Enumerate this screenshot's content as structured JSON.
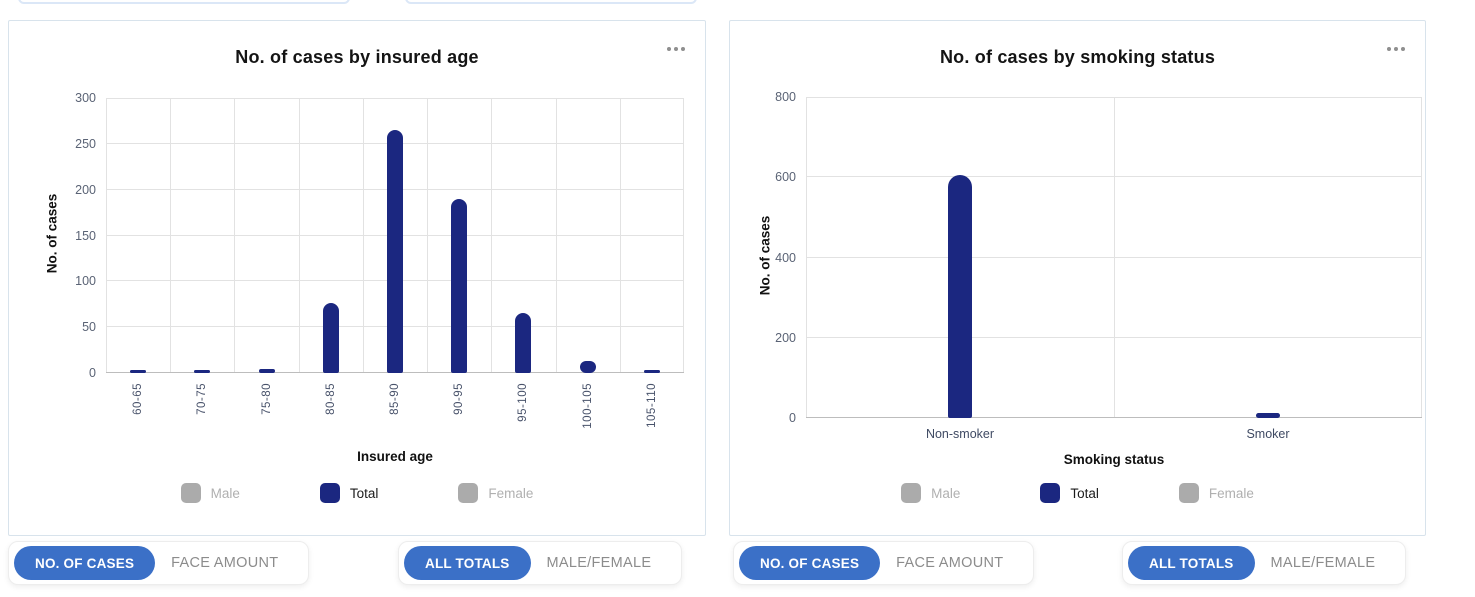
{
  "colors": {
    "bar_navy": "#1b2780",
    "legend_inactive_gray": "#ababab",
    "button_active_blue": "#3b70c7",
    "button_inactive_text": "#8c8c8c",
    "gridline": "#e2e2e2",
    "card_border": "#d8e3ec"
  },
  "cards": [
    {
      "title": "No. of cases by insured age",
      "y_axis_title": "No. of cases",
      "x_axis_title": "Insured age",
      "legend": [
        {
          "label": "Male",
          "active": false
        },
        {
          "label": "Total",
          "active": true
        },
        {
          "label": "Female",
          "active": false
        }
      ]
    },
    {
      "title": "No. of cases by smoking status",
      "y_axis_title": "No. of cases",
      "x_axis_title": "Smoking status",
      "legend": [
        {
          "label": "Male",
          "active": false
        },
        {
          "label": "Total",
          "active": true
        },
        {
          "label": "Female",
          "active": false
        }
      ]
    }
  ],
  "chart_data": [
    {
      "type": "bar",
      "title": "No. of cases by insured age",
      "xlabel": "Insured age",
      "ylabel": "No. of cases",
      "categories": [
        "60-65",
        "70-75",
        "75-80",
        "80-85",
        "85-90",
        "90-95",
        "95-100",
        "100-105",
        "105-110"
      ],
      "series": [
        {
          "name": "Total",
          "color": "#1b2780",
          "values": [
            2,
            2,
            4,
            76,
            265,
            190,
            65,
            13,
            2
          ]
        }
      ],
      "inactive_series": [
        "Male",
        "Female"
      ],
      "ylim": [
        0,
        300
      ],
      "ytick_step": 50,
      "yticks": [
        0,
        50,
        100,
        150,
        200,
        250,
        300
      ],
      "grid": true,
      "legend_position": "bottom",
      "x_labels_rotated": true
    },
    {
      "type": "bar",
      "title": "No. of cases by smoking status",
      "xlabel": "Smoking status",
      "ylabel": "No. of cases",
      "categories": [
        "Non-smoker",
        "Smoker"
      ],
      "series": [
        {
          "name": "Total",
          "color": "#1b2780",
          "values": [
            605,
            12
          ]
        }
      ],
      "inactive_series": [
        "Male",
        "Female"
      ],
      "ylim": [
        0,
        800
      ],
      "ytick_step": 200,
      "yticks": [
        0,
        200,
        400,
        600,
        800
      ],
      "grid": true,
      "legend_position": "bottom",
      "x_labels_rotated": false
    }
  ],
  "button_groups": [
    {
      "buttons": [
        {
          "label": "NO. OF CASES",
          "active": true
        },
        {
          "label": "FACE AMOUNT",
          "active": false
        }
      ]
    },
    {
      "buttons": [
        {
          "label": "ALL TOTALS",
          "active": true
        },
        {
          "label": "MALE/FEMALE",
          "active": false
        }
      ]
    },
    {
      "buttons": [
        {
          "label": "NO. OF CASES",
          "active": true
        },
        {
          "label": "FACE AMOUNT",
          "active": false
        }
      ]
    },
    {
      "buttons": [
        {
          "label": "ALL TOTALS",
          "active": true
        },
        {
          "label": "MALE/FEMALE",
          "active": false
        }
      ]
    }
  ]
}
